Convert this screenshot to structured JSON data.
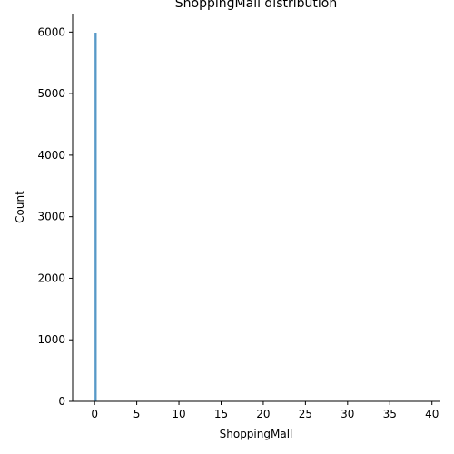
{
  "chart_data": {
    "type": "bar",
    "title": "ShoppingMall distribution",
    "xlabel": "ShoppingMall",
    "ylabel": "Count",
    "xlim": [
      -2.6,
      41.0
    ],
    "ylim": [
      0,
      6300
    ],
    "xticks": [
      0,
      5,
      10,
      15,
      20,
      25,
      30,
      35,
      40
    ],
    "yticks": [
      0,
      1000,
      2000,
      3000,
      4000,
      5000,
      6000
    ],
    "grid": false,
    "bar_color": "#1f77b4",
    "bins": [
      {
        "x0": 0.0,
        "x1": 0.25,
        "count": 5990
      },
      {
        "x0": 0.25,
        "x1": 0.5,
        "count": 0
      },
      {
        "x0": 0.5,
        "x1": 0.75,
        "count": 2
      },
      {
        "x0": 0.75,
        "x1": 1.0,
        "count": 0
      },
      {
        "x0": 1.0,
        "x1": 1.25,
        "count": 2
      },
      {
        "x0": 1.25,
        "x1": 1.5,
        "count": 0
      },
      {
        "x0": 1.5,
        "x1": 1.75,
        "count": 1
      },
      {
        "x0": 1.75,
        "x1": 2.0,
        "count": 1
      }
    ]
  }
}
